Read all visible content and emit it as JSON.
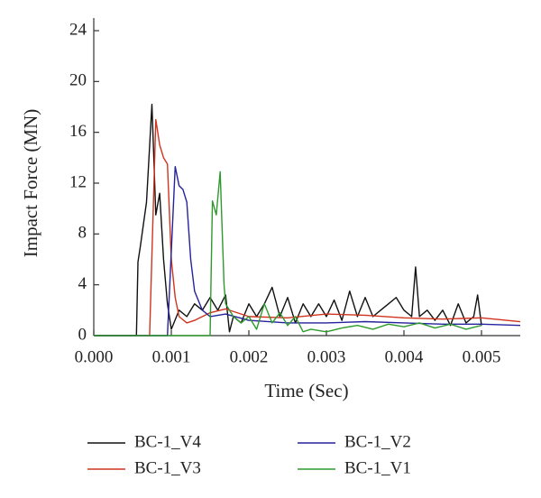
{
  "chart_data": {
    "type": "line",
    "x_label": "Time (Sec)",
    "y_label": "Impact Force (MN)",
    "xlim": [
      0,
      0.0055
    ],
    "ylim": [
      0,
      24
    ],
    "xticks": [
      {
        "value": 0,
        "label": "0.000"
      },
      0.001,
      0.002,
      0.003,
      0.004,
      0.005
    ],
    "yticks": [
      0,
      4,
      8,
      12,
      16,
      20,
      24
    ],
    "legend": "bottom",
    "series": [
      {
        "name": "BC-1_V4",
        "color": "#111111",
        "x": [
          0,
          0.00055,
          0.00057,
          0.0006,
          0.00068,
          0.00075,
          0.0008,
          0.00085,
          0.0009,
          0.00095,
          0.001,
          0.0011,
          0.0012,
          0.0013,
          0.0014,
          0.0015,
          0.0016,
          0.0017,
          0.00175,
          0.0018,
          0.0019,
          0.002,
          0.0021,
          0.0022,
          0.0023,
          0.0024,
          0.0025,
          0.0026,
          0.0027,
          0.0028,
          0.0029,
          0.003,
          0.0031,
          0.0032,
          0.0033,
          0.0034,
          0.0035,
          0.0036,
          0.0037,
          0.0038,
          0.0039,
          0.004,
          0.0041,
          0.00415,
          0.0042,
          0.0043,
          0.0044,
          0.0045,
          0.0046,
          0.0047,
          0.0048,
          0.0049,
          0.00495,
          0.005
        ],
        "values": [
          0,
          0,
          5.8,
          7,
          10.5,
          18.2,
          9.5,
          11.2,
          6,
          2.5,
          0.5,
          2,
          1.5,
          2.5,
          2,
          3,
          2,
          3.2,
          0.3,
          1.5,
          1,
          2.5,
          1.5,
          2.5,
          3.8,
          1.5,
          3,
          1,
          2.5,
          1.5,
          2.5,
          1.5,
          2.8,
          1.2,
          3.5,
          1.5,
          3,
          1.5,
          2,
          2.5,
          3,
          2,
          1.5,
          5.4,
          1.5,
          2,
          1.2,
          2,
          0.8,
          2.5,
          1,
          1.5,
          3.2,
          0.8
        ]
      },
      {
        "name": "BC-1_V3",
        "color": "#d0341f",
        "x": [
          0,
          0.00072,
          0.0008,
          0.00085,
          0.0009,
          0.00095,
          0.001,
          0.00105,
          0.0011,
          0.0012,
          0.0013,
          0.0015,
          0.0017,
          0.002,
          0.0025,
          0.003,
          0.0035,
          0.004,
          0.0045,
          0.005,
          0.0055
        ],
        "values": [
          0,
          0,
          17,
          15,
          14,
          13.5,
          6,
          3,
          1.5,
          1,
          1.2,
          1.8,
          2.1,
          1.5,
          1.4,
          1.7,
          1.6,
          1.4,
          1.3,
          1.4,
          1.1
        ]
      },
      {
        "name": "BC-1_V2",
        "color": "#25229c",
        "x": [
          0,
          0.00095,
          0.00105,
          0.0011,
          0.00115,
          0.0012,
          0.00125,
          0.0013,
          0.0014,
          0.0015,
          0.0017,
          0.002,
          0.0025,
          0.003,
          0.0035,
          0.004,
          0.0045,
          0.005,
          0.0055
        ],
        "values": [
          0,
          0,
          13.3,
          11.8,
          11.5,
          10.5,
          6,
          3.5,
          2,
          1.5,
          1.7,
          1.2,
          1,
          1,
          1.1,
          1,
          0.9,
          0.9,
          0.8
        ]
      },
      {
        "name": "BC-1_V1",
        "color": "#2e9a2e",
        "x": [
          0,
          0.0015,
          0.00153,
          0.00158,
          0.00163,
          0.00168,
          0.0017,
          0.0018,
          0.0019,
          0.002,
          0.0021,
          0.0022,
          0.0023,
          0.0024,
          0.0025,
          0.0026,
          0.0027,
          0.0028,
          0.003,
          0.0032,
          0.0034,
          0.0036,
          0.0038,
          0.004,
          0.0042,
          0.0044,
          0.0046,
          0.0048,
          0.005
        ],
        "values": [
          0,
          0,
          10.6,
          9.5,
          12.9,
          4,
          2.5,
          1.5,
          1,
          1.5,
          0.5,
          2.5,
          1,
          1.8,
          0.8,
          1.5,
          0.3,
          0.5,
          0.3,
          0.6,
          0.8,
          0.5,
          0.9,
          0.7,
          1,
          0.6,
          0.9,
          0.5,
          0.8
        ]
      }
    ]
  }
}
